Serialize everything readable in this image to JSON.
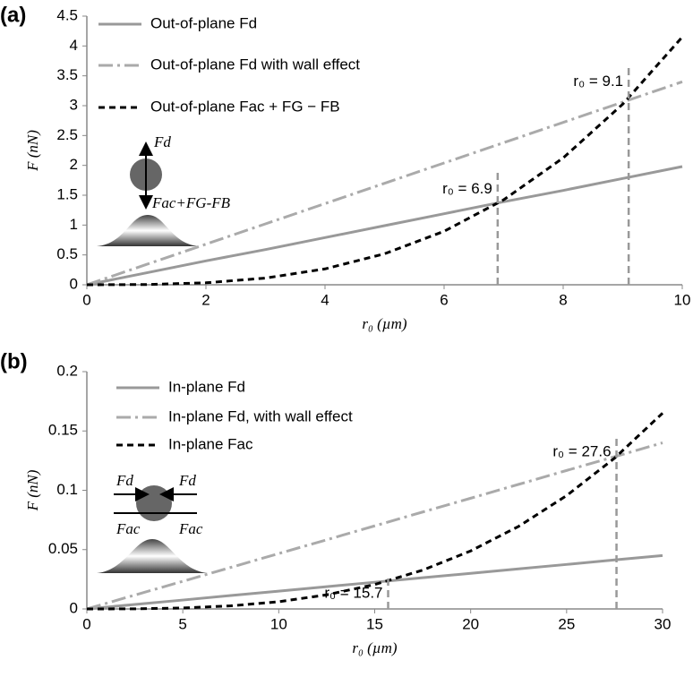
{
  "chart_data": [
    {
      "type": "line",
      "panel_label": "(a)",
      "x_label": "r₀ (µm)",
      "y_label": "F (nN)",
      "xlim": [
        0,
        10
      ],
      "xticks": [
        0,
        2,
        4,
        6,
        8,
        10
      ],
      "ylim": [
        0,
        4.5
      ],
      "yticks": [
        0,
        0.5,
        1,
        1.5,
        2,
        2.5,
        3,
        3.5,
        4,
        4.5
      ],
      "x": [
        0,
        1,
        2,
        3,
        4,
        5,
        6,
        7,
        8,
        9,
        10
      ],
      "series": [
        {
          "name": "Out-of-plane Fd",
          "color": "#999999",
          "style": "solid",
          "values": [
            0,
            0.2,
            0.4,
            0.59,
            0.79,
            0.99,
            1.19,
            1.39,
            1.58,
            1.78,
            1.98
          ]
        },
        {
          "name": "Out-of-plane Fd with wall effect",
          "color": "#aaaaaa",
          "style": "dashdot",
          "values": [
            0,
            0.34,
            0.68,
            1.02,
            1.36,
            1.7,
            2.04,
            2.38,
            2.72,
            3.06,
            3.4
          ]
        },
        {
          "name": "Out-of-plane Fac + FG − FB",
          "color": "#000000",
          "style": "dashed",
          "values": [
            0,
            0.004,
            0.033,
            0.112,
            0.266,
            0.519,
            0.896,
            1.423,
            2.125,
            3.025,
            4.15
          ]
        }
      ],
      "annotations": [
        {
          "text": "r₀ = 6.9",
          "x": 6.9,
          "y": 1.9
        },
        {
          "text": "r₀ = 9.1",
          "x": 9.1,
          "y": 3.7
        }
      ],
      "inset_labels": [
        "Fd",
        "Fac+FG-FB"
      ]
    },
    {
      "type": "line",
      "panel_label": "(b)",
      "x_label": "r₀ (µm)",
      "y_label": "F (nN)",
      "xlim": [
        0,
        30
      ],
      "xticks": [
        0,
        5,
        10,
        15,
        20,
        25,
        30
      ],
      "ylim": [
        0,
        0.2
      ],
      "yticks": [
        0,
        0.05,
        0.1,
        0.15,
        0.2
      ],
      "x": [
        0,
        2.5,
        5,
        7.5,
        10,
        12.5,
        15,
        17.5,
        20,
        22.5,
        25,
        27.5,
        30
      ],
      "series": [
        {
          "name": "In-plane Fd",
          "color": "#999999",
          "style": "solid",
          "values": [
            0,
            0.0038,
            0.0075,
            0.0113,
            0.015,
            0.0188,
            0.0225,
            0.0263,
            0.03,
            0.0338,
            0.0375,
            0.0413,
            0.045
          ]
        },
        {
          "name": "In-plane Fd, with wall effect",
          "color": "#aaaaaa",
          "style": "dashdot",
          "values": [
            0,
            0.0117,
            0.0233,
            0.035,
            0.0467,
            0.0583,
            0.07,
            0.0817,
            0.0933,
            0.105,
            0.1167,
            0.1283,
            0.14
          ]
        },
        {
          "name": "In-plane Fac",
          "color": "#000000",
          "style": "dashed",
          "values": [
            0,
            0.0001,
            0.0008,
            0.0026,
            0.0061,
            0.0119,
            0.0206,
            0.0327,
            0.0489,
            0.0696,
            0.0955,
            0.1271,
            0.165
          ]
        }
      ],
      "annotations": [
        {
          "text": "r₀ = 15.7",
          "x": 15.7,
          "y": 0.028
        },
        {
          "text": "r₀ = 27.6",
          "x": 27.6,
          "y": 0.147
        }
      ],
      "inset_labels": [
        "Fd",
        "Fd",
        "Fac",
        "Fac"
      ]
    }
  ]
}
